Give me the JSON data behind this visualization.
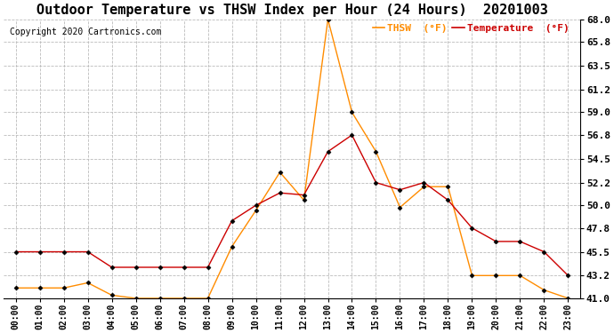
{
  "title": "Outdoor Temperature vs THSW Index per Hour (24 Hours)  20201003",
  "copyright": "Copyright 2020 Cartronics.com",
  "hours": [
    "00:00",
    "01:00",
    "02:00",
    "03:00",
    "04:00",
    "05:00",
    "06:00",
    "07:00",
    "08:00",
    "09:00",
    "10:00",
    "11:00",
    "12:00",
    "13:00",
    "14:00",
    "15:00",
    "16:00",
    "17:00",
    "18:00",
    "19:00",
    "20:00",
    "21:00",
    "22:00",
    "23:00"
  ],
  "temperature": [
    45.5,
    45.5,
    45.5,
    45.5,
    44.0,
    44.0,
    44.0,
    44.0,
    44.0,
    48.5,
    50.0,
    51.2,
    51.0,
    55.2,
    56.8,
    52.2,
    51.5,
    52.2,
    50.5,
    47.8,
    46.5,
    46.5,
    45.5,
    43.2
  ],
  "thsw": [
    42.0,
    42.0,
    42.0,
    42.5,
    41.3,
    41.0,
    41.0,
    41.0,
    41.0,
    46.0,
    49.5,
    53.2,
    50.5,
    68.0,
    59.0,
    55.2,
    49.8,
    51.8,
    51.8,
    43.2,
    43.2,
    43.2,
    41.8,
    41.0
  ],
  "temp_color": "#cc0000",
  "thsw_color": "#ff8c00",
  "marker": "D",
  "marker_size": 2.5,
  "marker_color": "black",
  "ylim": [
    41.0,
    68.0
  ],
  "yticks": [
    41.0,
    43.2,
    45.5,
    47.8,
    50.0,
    52.2,
    54.5,
    56.8,
    59.0,
    61.2,
    63.5,
    65.8,
    68.0
  ],
  "background_color": "#ffffff",
  "grid_color": "#bbbbbb",
  "title_fontsize": 11,
  "copyright_fontsize": 7,
  "legend_thsw": "THSW  (°F)",
  "legend_temp": "Temperature  (°F)",
  "legend_fontsize": 8,
  "xtick_fontsize": 7,
  "ytick_fontsize": 8
}
